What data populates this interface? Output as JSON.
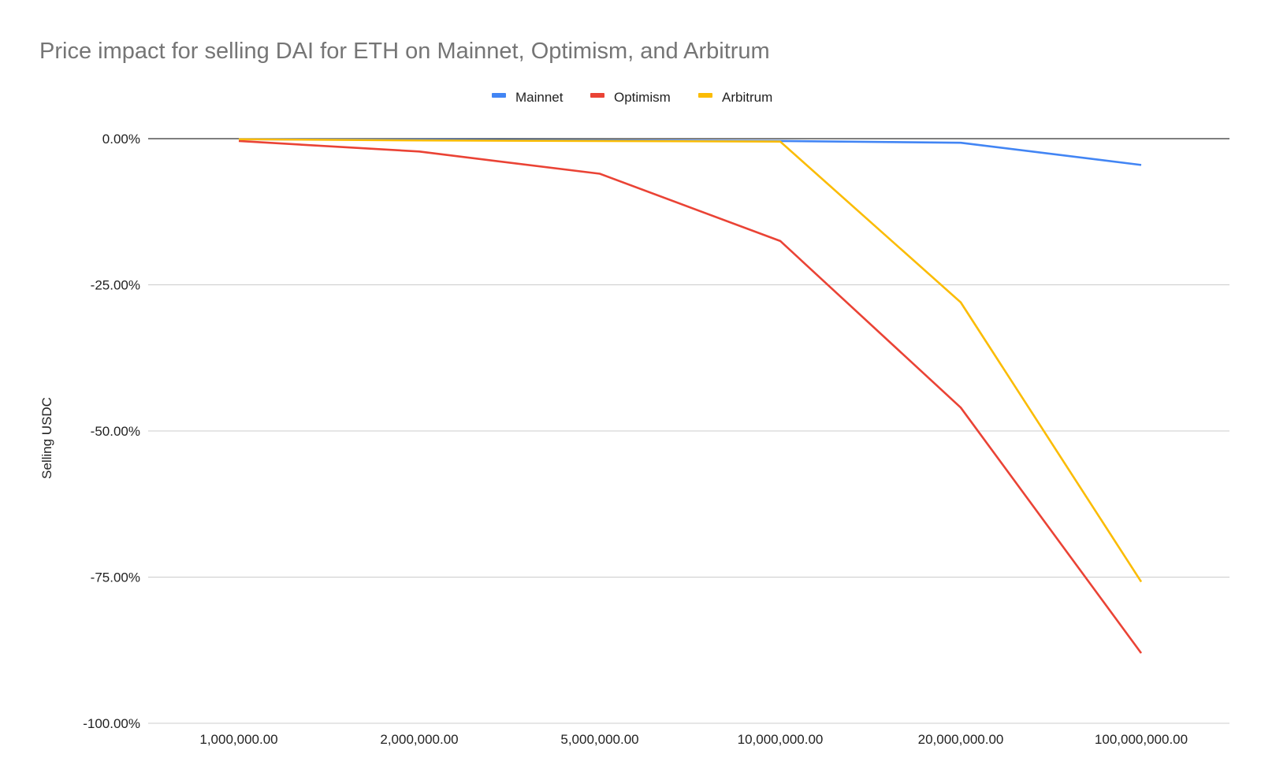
{
  "chart_data": {
    "type": "line",
    "title": "Price impact for selling DAI for ETH on Mainnet, Optimism, and Arbitrum",
    "xlabel": "",
    "ylabel": "Selling USDC",
    "categories": [
      "1,000,000.00",
      "2,000,000.00",
      "5,000,000.00",
      "10,000,000.00",
      "20,000,000.00",
      "100,000,000.00"
    ],
    "ylim": [
      -100,
      0
    ],
    "yticks": [
      0,
      -25,
      -50,
      -75,
      -100
    ],
    "ytick_labels": [
      "0.00%",
      "-25.00%",
      "-50.00%",
      "-75.00%",
      "-100.00%"
    ],
    "grid": true,
    "legend_position": "top-center",
    "series": [
      {
        "name": "Mainnet",
        "color": "#4285f4",
        "values": [
          -0.1,
          -0.2,
          -0.3,
          -0.4,
          -0.7,
          -4.5
        ]
      },
      {
        "name": "Optimism",
        "color": "#ea4335",
        "values": [
          -0.4,
          -2.2,
          -6.0,
          -17.5,
          -46.0,
          -88.0
        ]
      },
      {
        "name": "Arbitrum",
        "color": "#fbbc04",
        "values": [
          -0.1,
          -0.3,
          -0.4,
          -0.5,
          -28.0,
          -75.8
        ]
      }
    ]
  }
}
